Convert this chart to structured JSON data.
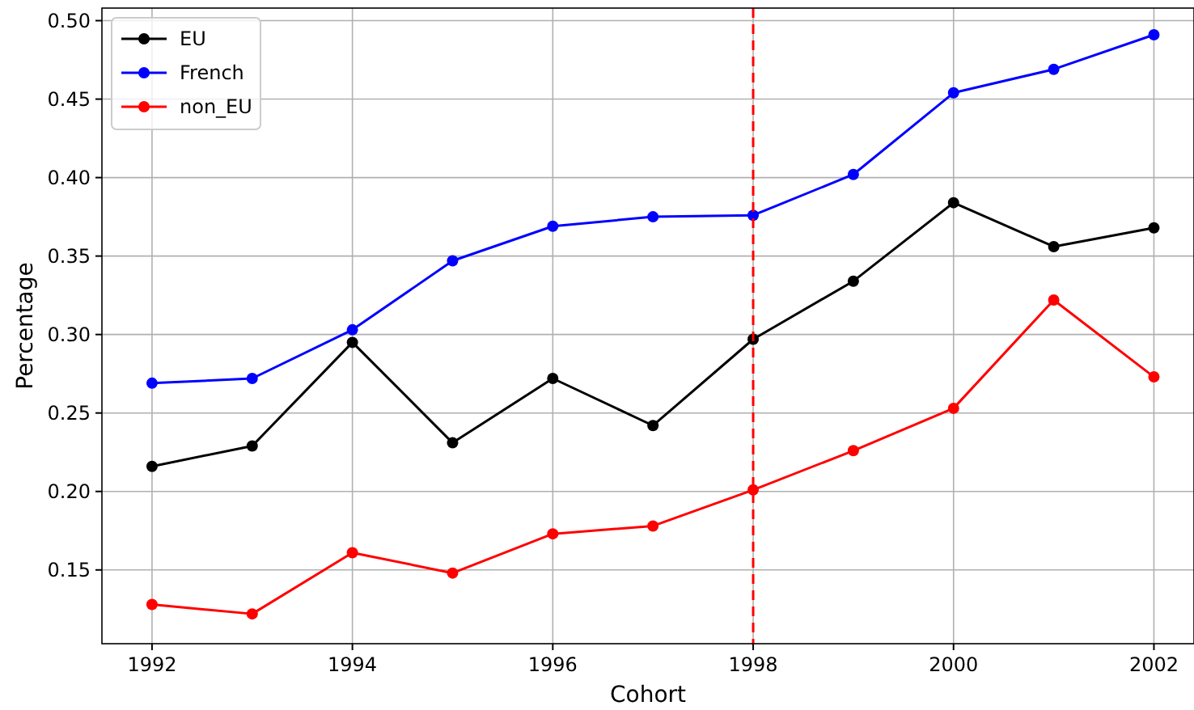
{
  "chart_data": {
    "type": "line",
    "xlabel": "Cohort",
    "ylabel": "Percentage",
    "x": [
      1992,
      1993,
      1994,
      1995,
      1996,
      1997,
      1998,
      1999,
      2000,
      2001,
      2002
    ],
    "series": [
      {
        "name": "EU",
        "color": "#000000",
        "values": [
          0.216,
          0.229,
          0.295,
          0.231,
          0.272,
          0.242,
          0.297,
          0.334,
          0.384,
          0.356,
          0.368
        ]
      },
      {
        "name": "French",
        "color": "#0000ff",
        "values": [
          0.269,
          0.272,
          0.303,
          0.347,
          0.369,
          0.375,
          0.376,
          0.402,
          0.454,
          0.469,
          0.491
        ]
      },
      {
        "name": "non_EU",
        "color": "#ff0000",
        "values": [
          0.128,
          0.122,
          0.161,
          0.148,
          0.173,
          0.178,
          0.201,
          0.226,
          0.253,
          0.322,
          0.273
        ]
      }
    ],
    "xlim": [
      1991.5,
      2002.4
    ],
    "ylim": [
      0.103,
      0.508
    ],
    "xticks": [
      1992,
      1994,
      1996,
      1998,
      2000,
      2002
    ],
    "yticks": [
      {
        "value": 0.15,
        "label": "0.15"
      },
      {
        "value": 0.2,
        "label": "0.20"
      },
      {
        "value": 0.25,
        "label": "0.25"
      },
      {
        "value": 0.3,
        "label": "0.30"
      },
      {
        "value": 0.35,
        "label": "0.35"
      },
      {
        "value": 0.4,
        "label": "0.40"
      },
      {
        "value": 0.45,
        "label": "0.45"
      },
      {
        "value": 0.5,
        "label": "0.50"
      }
    ],
    "ref_lines": [
      {
        "axis": "x",
        "value": 1998,
        "color": "#ff0000",
        "line_style": "dashed"
      }
    ],
    "grid": true,
    "legend": "top left",
    "marker": "circle",
    "line_style": "solid"
  }
}
